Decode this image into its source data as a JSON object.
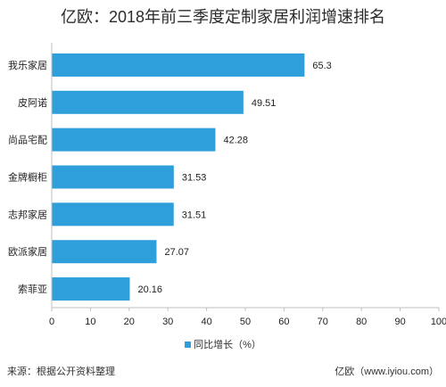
{
  "title": "亿欧：2018年前三季度定制家居利润增速排名",
  "source": "来源：根据公开资料整理",
  "brand": "亿欧（www.iyiou.com）",
  "colors": {
    "bar": "#2f9fdb",
    "axis": "#bfbfbf",
    "text": "#222222"
  },
  "chart_data": {
    "type": "bar",
    "orientation": "horizontal",
    "categories": [
      "我乐家居",
      "皮阿诺",
      "尚品宅配",
      "金牌橱柜",
      "志邦家居",
      "欧派家居",
      "索菲亚"
    ],
    "series": [
      {
        "name": "同比增长（%）",
        "values": [
          65.3,
          49.51,
          42.28,
          31.53,
          31.51,
          27.07,
          20.16
        ]
      }
    ],
    "value_labels": [
      "65.3",
      "49.51",
      "42.28",
      "31.53",
      "31.51",
      "27.07",
      "20.16"
    ],
    "xlim": [
      0,
      100
    ],
    "xticks": [
      0,
      10,
      20,
      30,
      40,
      50,
      60,
      70,
      80,
      90,
      100
    ],
    "grid": false,
    "legend_position": "bottom"
  }
}
